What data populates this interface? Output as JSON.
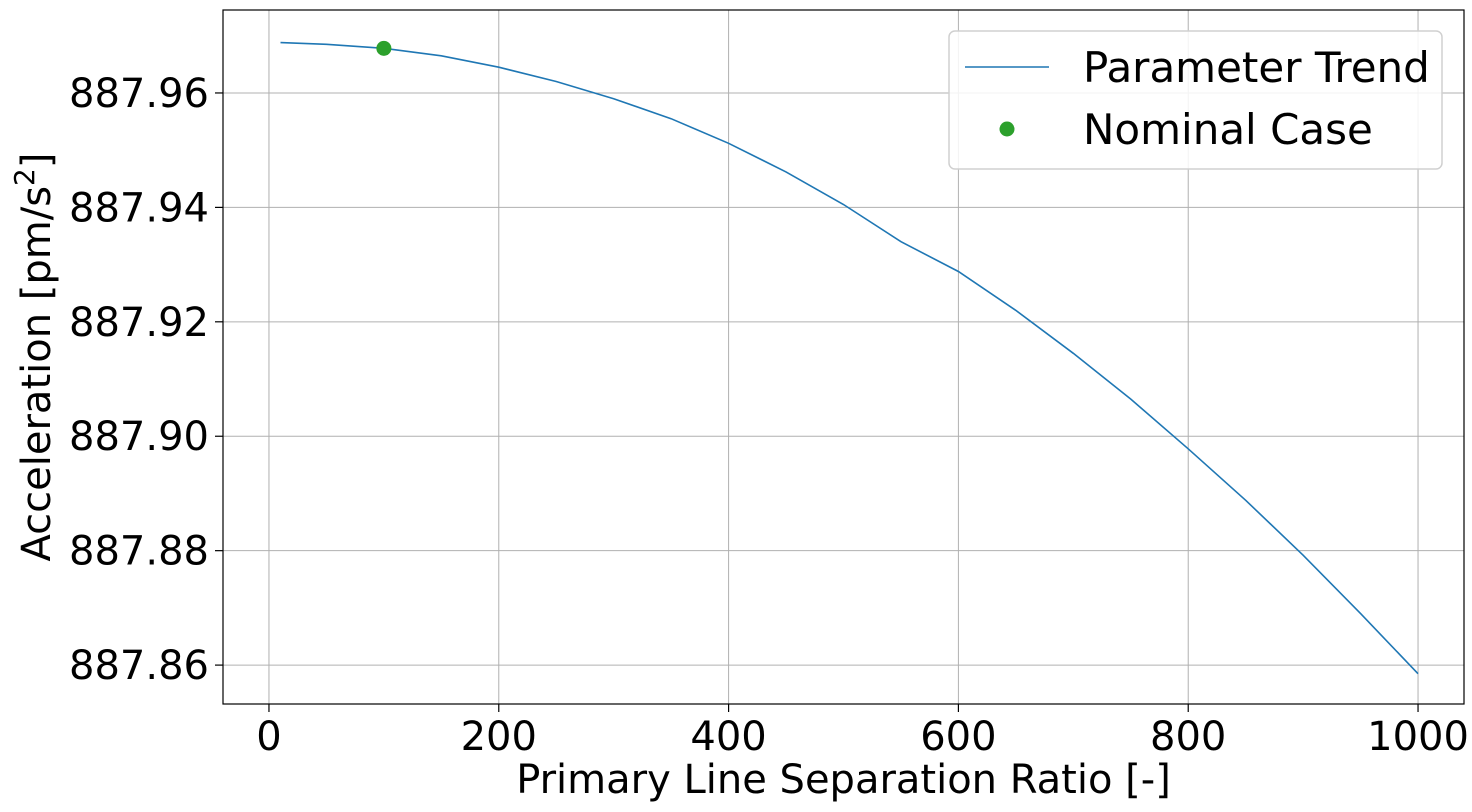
{
  "chart_data": {
    "type": "line",
    "xlabel": "Primary Line Separation Ratio [-]",
    "ylabel_main": "Acceleration [pm/s",
    "ylabel_sup": "2",
    "ylabel_end": "]",
    "xlim": [
      -40,
      1040
    ],
    "ylim": [
      887.8532,
      887.9745
    ],
    "x_ticks": [
      0,
      200,
      400,
      600,
      800,
      1000
    ],
    "x_tick_labels": [
      "0",
      "200",
      "400",
      "600",
      "800",
      "1000"
    ],
    "y_ticks": [
      887.86,
      887.88,
      887.9,
      887.92,
      887.94,
      887.96
    ],
    "y_tick_labels": [
      "887.86",
      "887.88",
      "887.90",
      "887.92",
      "887.94",
      "887.96"
    ],
    "grid": true,
    "legend_position": "top-right",
    "series": [
      {
        "name": "Parameter Trend",
        "style": "line",
        "color": "#1f77b4",
        "x": [
          10,
          50,
          100,
          150,
          200,
          250,
          300,
          350,
          400,
          450,
          500,
          550,
          600,
          650,
          700,
          750,
          800,
          850,
          900,
          950,
          1000
        ],
        "y": [
          887.9688,
          887.9685,
          887.9678,
          887.9665,
          887.9645,
          887.962,
          887.959,
          887.9555,
          887.9512,
          887.9462,
          887.9405,
          887.934,
          887.9288,
          887.922,
          887.9145,
          887.9065,
          887.8978,
          887.8888,
          887.8792,
          887.869,
          887.8585
        ]
      },
      {
        "name": "Nominal Case",
        "style": "marker",
        "color": "#2ca02c",
        "x": [
          100
        ],
        "y": [
          887.9678
        ]
      }
    ]
  }
}
